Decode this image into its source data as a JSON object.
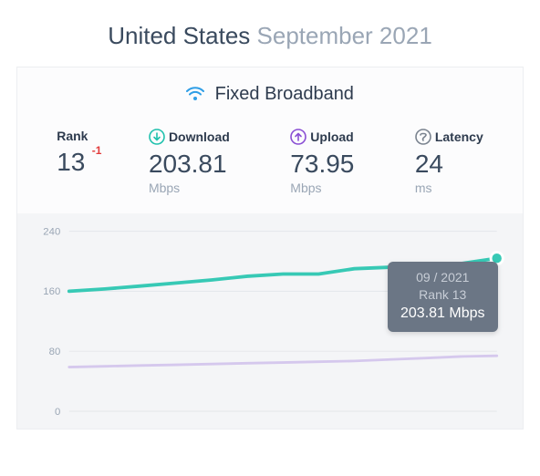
{
  "title": {
    "location": "United States",
    "period": "September 2021"
  },
  "card": {
    "title": "Fixed Broadband",
    "icon": "wifi-icon",
    "icon_color": "#2f9ee6"
  },
  "stats": {
    "rank": {
      "label": "Rank",
      "value": "13",
      "delta": "-1",
      "delta_color": "#e23a3a"
    },
    "download": {
      "label": "Download",
      "value": "203.81",
      "unit": "Mbps",
      "icon_color": "#1fc1ad"
    },
    "upload": {
      "label": "Upload",
      "value": "73.95",
      "unit": "Mbps",
      "icon_color": "#8a4fd4"
    },
    "latency": {
      "label": "Latency",
      "value": "24",
      "unit": "ms",
      "icon_color": "#7a838f"
    }
  },
  "chart": {
    "type": "line",
    "background_color": "#f4f5f7",
    "grid_color": "#e3e6ea",
    "label_color": "#9aa6b5",
    "label_fontsize": 12,
    "ylim": [
      0,
      240
    ],
    "yticks": [
      0,
      80,
      160,
      240
    ],
    "x_count": 13,
    "series": {
      "download": {
        "color": "#37c9b5",
        "width": 4,
        "values": [
          160,
          163,
          167,
          171,
          175,
          180,
          183,
          183,
          190,
          192,
          193,
          197,
          204
        ]
      },
      "upload": {
        "color": "#d5c8ed",
        "width": 3,
        "values": [
          59,
          60,
          61,
          62,
          63,
          64,
          65,
          66,
          67,
          69,
          71,
          73,
          74
        ]
      }
    },
    "highlight_point": {
      "series": "download",
      "index": 12
    },
    "tooltip": {
      "line1": "09 / 2021",
      "line2": "Rank 13",
      "line3": "203.81 Mbps",
      "bg_color": "#6b7685"
    }
  }
}
